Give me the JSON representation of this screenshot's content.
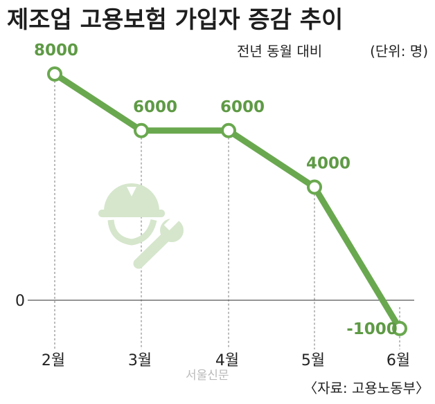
{
  "chart_data": {
    "type": "line",
    "title": "제조업 고용보험 가입자 증감 추이",
    "subtitle": "전년 동월 대비",
    "unit": "(단위: 명)",
    "categories": [
      "2월",
      "3월",
      "4월",
      "5월",
      "6월"
    ],
    "series": [
      {
        "values": [
          8000,
          6000,
          6000,
          4000,
          -1000
        ]
      }
    ],
    "data_labels": [
      "8000",
      "6000",
      "6000",
      "4000",
      "-1000"
    ],
    "y_zero_label": "0",
    "ylim": [
      -1000,
      8000
    ],
    "grid": "dashed vertical guides at each category",
    "legend": "none",
    "source": "〈자료: 고용노동부〉",
    "watermark": "서울신문",
    "colors": {
      "line": "#6aa84f",
      "label": "#5e9a45",
      "icon": "#d5e6cc",
      "point_fill": "#ffffff"
    },
    "illustration": [
      "hard-hat-icon",
      "wrench-icon"
    ]
  }
}
